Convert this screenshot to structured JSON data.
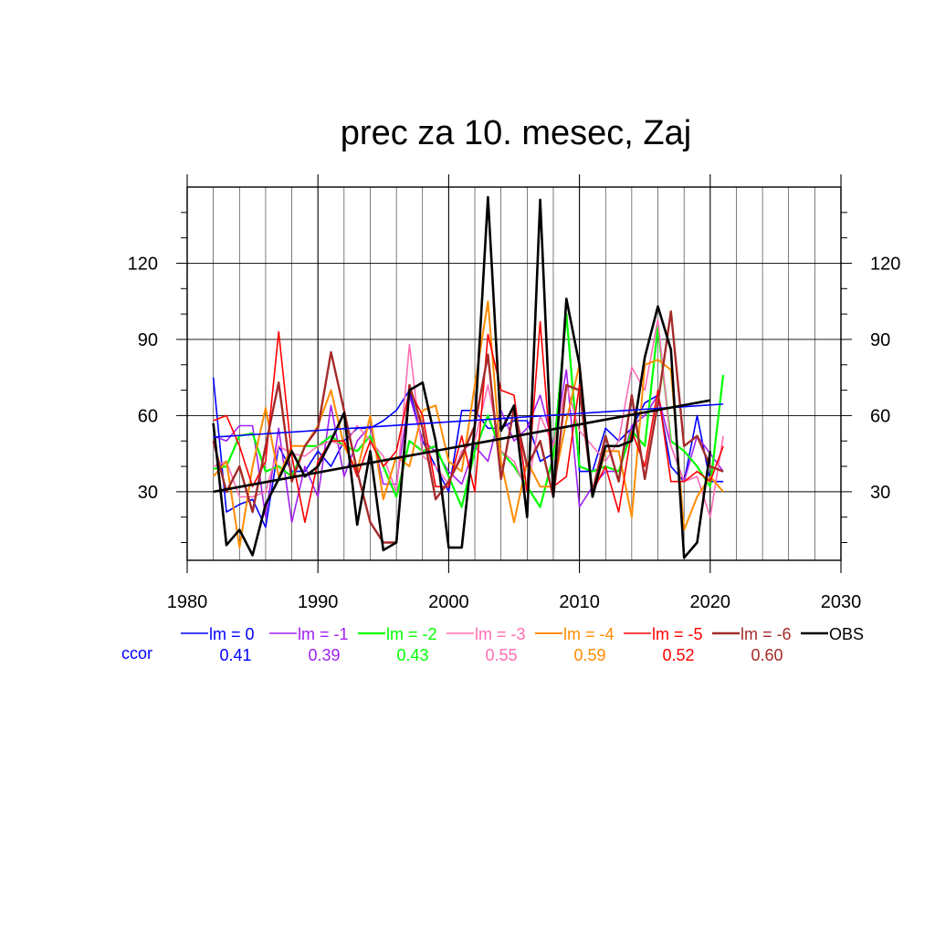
{
  "chart_data": {
    "type": "line",
    "title": "prec za 10. mesec, Zaj",
    "xlim": [
      1980,
      2030
    ],
    "ylim": [
      3,
      150
    ],
    "x_ticks": [
      1980,
      1990,
      2000,
      2010,
      2020,
      2030
    ],
    "y_ticks": [
      30,
      60,
      90,
      120
    ],
    "grid": true,
    "legend_position": "bottom",
    "ccor_label": "ccor",
    "x": [
      1982,
      1983,
      1984,
      1985,
      1986,
      1987,
      1988,
      1989,
      1990,
      1991,
      1992,
      1993,
      1994,
      1995,
      1996,
      1997,
      1998,
      1999,
      2000,
      2001,
      2002,
      2003,
      2004,
      2005,
      2006,
      2007,
      2008,
      2009,
      2010,
      2011,
      2012,
      2013,
      2014,
      2015,
      2016,
      2017,
      2018,
      2019,
      2020,
      2021
    ],
    "series": [
      {
        "name": "lm = 0",
        "ccor": "0.41",
        "color": "#0000ff",
        "width": 1.6,
        "values": [
          75,
          22,
          25,
          27,
          16,
          48,
          38,
          38,
          46,
          40,
          50,
          55,
          55,
          58,
          62,
          70,
          50,
          40,
          30,
          62,
          62,
          55,
          55,
          58,
          58,
          42,
          45,
          100,
          38,
          38,
          55,
          50,
          55,
          65,
          68,
          40,
          34,
          60,
          34,
          34
        ]
      },
      {
        "name": "lm = -1",
        "ccor": "0.39",
        "color": "#a020f0",
        "width": 1.6,
        "values": [
          52,
          50,
          56,
          56,
          20,
          55,
          18,
          40,
          28,
          64,
          36,
          50,
          56,
          33,
          33,
          68,
          50,
          46,
          38,
          33,
          48,
          42,
          62,
          50,
          55,
          68,
          48,
          78,
          24,
          32,
          38,
          38,
          56,
          60,
          68,
          48,
          34,
          52,
          45,
          38
        ]
      },
      {
        "name": "lm = -2",
        "ccor": "0.43",
        "color": "#00ff00",
        "width": 2.2,
        "values": [
          39,
          40,
          52,
          53,
          38,
          40,
          36,
          48,
          48,
          52,
          48,
          46,
          52,
          40,
          28,
          50,
          46,
          48,
          36,
          24,
          46,
          60,
          46,
          40,
          32,
          24,
          44,
          100,
          40,
          38,
          40,
          38,
          54,
          48,
          95,
          50,
          46,
          40,
          32,
          76
        ]
      },
      {
        "name": "lm = -3",
        "ccor": "0.55",
        "color": "#ff6eb4",
        "width": 1.6,
        "values": [
          40,
          42,
          28,
          28,
          30,
          48,
          45,
          44,
          48,
          50,
          48,
          56,
          50,
          44,
          30,
          88,
          44,
          40,
          33,
          46,
          50,
          72,
          46,
          42,
          30,
          60,
          48,
          72,
          54,
          48,
          42,
          50,
          79,
          70,
          98,
          48,
          34,
          36,
          20,
          52
        ]
      },
      {
        "name": "lm = -4",
        "ccor": "0.59",
        "color": "#ff8c00",
        "width": 2.0,
        "values": [
          36,
          42,
          8,
          40,
          63,
          36,
          48,
          48,
          56,
          70,
          48,
          38,
          60,
          27,
          44,
          40,
          62,
          64,
          42,
          38,
          72,
          105,
          42,
          18,
          42,
          32,
          32,
          58,
          80,
          28,
          46,
          46,
          20,
          80,
          82,
          78,
          15,
          28,
          36,
          30
        ]
      },
      {
        "name": "lm = -5",
        "ccor": "0.52",
        "color": "#ff0000",
        "width": 1.6,
        "values": [
          58,
          60,
          48,
          32,
          42,
          93,
          44,
          18,
          42,
          50,
          50,
          36,
          50,
          40,
          46,
          70,
          60,
          32,
          32,
          52,
          30,
          92,
          70,
          68,
          30,
          97,
          32,
          36,
          72,
          30,
          40,
          22,
          54,
          40,
          70,
          34,
          34,
          38,
          34,
          48
        ]
      },
      {
        "name": "lm = -6",
        "ccor": "0.60",
        "color": "#a52a2a",
        "width": 2.4,
        "values": [
          50,
          30,
          40,
          22,
          48,
          73,
          34,
          48,
          55,
          85,
          62,
          38,
          18,
          10,
          10,
          72,
          55,
          27,
          34,
          44,
          56,
          84,
          35,
          63,
          40,
          50,
          28,
          72,
          70,
          30,
          52,
          34,
          68,
          35,
          65,
          101,
          48,
          52,
          40,
          38
        ]
      },
      {
        "name": "OBS",
        "ccor": "",
        "color": "#000000",
        "width": 2.6,
        "values": [
          57,
          9,
          15,
          5,
          25,
          35,
          46,
          36,
          40,
          50,
          61,
          17,
          46,
          7,
          10,
          70,
          73,
          50,
          8,
          8,
          56,
          146,
          54,
          64,
          20,
          145,
          28,
          106,
          80,
          28,
          48,
          48,
          50,
          83,
          103,
          86,
          4,
          10,
          46,
          null
        ]
      }
    ],
    "trends": [
      {
        "name": "lm = 0",
        "color": "#0000ff",
        "width": 1.6,
        "x": [
          1982,
          2021
        ],
        "y": [
          51.5,
          64.5
        ]
      },
      {
        "name": "OBS",
        "color": "#000000",
        "width": 2.6,
        "x": [
          1982,
          2020
        ],
        "y": [
          30,
          66
        ]
      }
    ]
  }
}
